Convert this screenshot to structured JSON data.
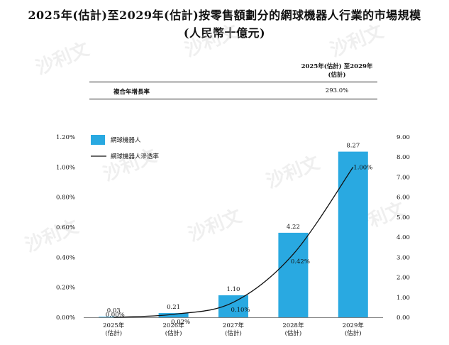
{
  "title_line1": "2025年(估計)至2029年(估計)按零售額劃分的網球機器人行業的市場規模",
  "title_line2": "(人民幣十億元)",
  "cagr_table": {
    "period_header_line1": "2025年(估計) 至2029年",
    "period_header_line2": "(估計)",
    "row_label": "複合年增長率",
    "row_value": "293.0%"
  },
  "watermark_text": "沙利文",
  "chart_data": {
    "type": "bar",
    "categories": [
      [
        "2025年",
        "(估計)"
      ],
      [
        "2026年",
        "(估計)"
      ],
      [
        "2027年",
        "(估計)"
      ],
      [
        "2028年",
        "(估計)"
      ],
      [
        "2029年",
        "(估計)"
      ]
    ],
    "series": [
      {
        "name": "網球機器人",
        "type": "bar",
        "axis": "right",
        "color": "#29a9e1",
        "values": [
          0.03,
          0.21,
          1.1,
          4.22,
          8.27
        ],
        "labels": [
          "0.03",
          "0.21",
          "1.10",
          "4.22",
          "8.27"
        ]
      },
      {
        "name": "網球機器人滲透率",
        "type": "line",
        "axis": "left",
        "color": "#111111",
        "values": [
          0.0,
          0.02,
          0.1,
          0.42,
          1.0
        ],
        "labels": [
          "0.00%",
          "0.02%",
          "0.10%",
          "0.42%",
          "1.00%"
        ]
      }
    ],
    "left_axis": {
      "range": [
        0,
        1.2
      ],
      "ticks": [
        "0.00%",
        "0.20%",
        "0.40%",
        "0.60%",
        "0.80%",
        "1.00%",
        "1.20%"
      ]
    },
    "right_axis": {
      "range": [
        0,
        9
      ],
      "ticks": [
        "0.00",
        "1.00",
        "2.00",
        "3.00",
        "4.00",
        "5.00",
        "6.00",
        "7.00",
        "8.00",
        "9.00"
      ]
    },
    "legend_position": "top-left",
    "grid": false
  }
}
